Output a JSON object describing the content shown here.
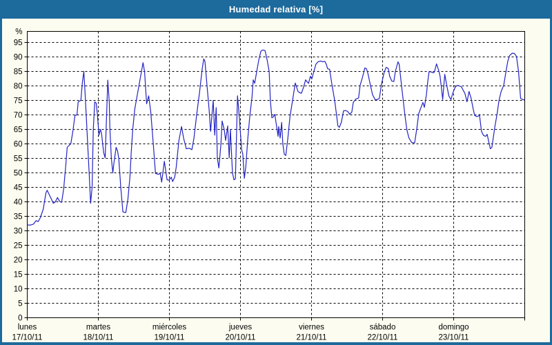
{
  "window": {
    "title": "Humedad relativa [%]"
  },
  "chart_data": {
    "type": "line",
    "title": "Humedad relativa [%]",
    "ylabel": "%",
    "unit_label": "%",
    "ylim": [
      0,
      100
    ],
    "ytick_step": 5,
    "ytick_min": 0,
    "ytick_max": 95,
    "grid": "dashed",
    "legend_position": "none",
    "x_hours_total": 168,
    "x_days": [
      {
        "name": "lunes",
        "date": "17/10/11"
      },
      {
        "name": "martes",
        "date": "18/10/11"
      },
      {
        "name": "miércoles",
        "date": "19/10/11"
      },
      {
        "name": "jueves",
        "date": "20/10/11"
      },
      {
        "name": "viernes",
        "date": "21/10/11"
      },
      {
        "name": "sábado",
        "date": "22/10/11"
      },
      {
        "name": "domingo",
        "date": "23/10/11"
      }
    ],
    "colors": {
      "frame": "#1d6a9c",
      "title_text": "#ffffff",
      "content_bg": "#fcfdf0",
      "plot_bg": "#ffffff",
      "line": "#2222c2",
      "grid": "#000000",
      "axis": "#000000",
      "text": "#000000"
    },
    "series": [
      {
        "name": "Humedad relativa",
        "points": [
          [
            0,
            32
          ],
          [
            1.2,
            32
          ],
          [
            2.1,
            32.3
          ],
          [
            3,
            33.5
          ],
          [
            3.7,
            33.2
          ],
          [
            4.4,
            34.5
          ],
          [
            5.4,
            37.5
          ],
          [
            6.3,
            43
          ],
          [
            6.7,
            44
          ],
          [
            7.4,
            42.5
          ],
          [
            8.1,
            41
          ],
          [
            8.8,
            39.5
          ],
          [
            9.5,
            40
          ],
          [
            10.2,
            41.5
          ],
          [
            10.9,
            40.2
          ],
          [
            11.6,
            39.8
          ],
          [
            12.3,
            44.5
          ],
          [
            13,
            52.5
          ],
          [
            13.5,
            58.8
          ],
          [
            14.7,
            60
          ],
          [
            15.4,
            64.3
          ],
          [
            16.1,
            69.8
          ],
          [
            16.8,
            70
          ],
          [
            17.2,
            74.5
          ],
          [
            18.1,
            75
          ],
          [
            18.6,
            81
          ],
          [
            19.1,
            85
          ],
          [
            19.5,
            78
          ],
          [
            20,
            68.3
          ],
          [
            20.5,
            57.9
          ],
          [
            20.9,
            50
          ],
          [
            21.4,
            39.5
          ],
          [
            21.9,
            45
          ],
          [
            22.3,
            65
          ],
          [
            22.8,
            74.5
          ],
          [
            23.3,
            74
          ],
          [
            23.7,
            70
          ],
          [
            24.2,
            63
          ],
          [
            24.7,
            65
          ],
          [
            25.1,
            63.5
          ],
          [
            25.8,
            57
          ],
          [
            26.3,
            55.2
          ],
          [
            26.8,
            70
          ],
          [
            27.2,
            82
          ],
          [
            27.7,
            74.3
          ],
          [
            27.9,
            65.5
          ],
          [
            28.4,
            55
          ],
          [
            28.9,
            50
          ],
          [
            29.3,
            53.6
          ],
          [
            30,
            58.8
          ],
          [
            30.5,
            57.5
          ],
          [
            30.9,
            55
          ],
          [
            31.6,
            44.8
          ],
          [
            32.3,
            36.5
          ],
          [
            33.3,
            36.3
          ],
          [
            34,
            41
          ],
          [
            34.7,
            48.8
          ],
          [
            35.1,
            56.7
          ],
          [
            35.6,
            64.8
          ],
          [
            36.3,
            72
          ],
          [
            37,
            76
          ],
          [
            37.7,
            80
          ],
          [
            38.4,
            84
          ],
          [
            39.1,
            88
          ],
          [
            39.6,
            85
          ],
          [
            40.3,
            73.8
          ],
          [
            41,
            76.6
          ],
          [
            41.7,
            71
          ],
          [
            42.6,
            59.5
          ],
          [
            43.3,
            49.8
          ],
          [
            44.2,
            49.5
          ],
          [
            44.9,
            49.8
          ],
          [
            45.4,
            46.8
          ],
          [
            46.3,
            54
          ],
          [
            47.2,
            47.6
          ],
          [
            47.9,
            47.5
          ],
          [
            48.6,
            48.5
          ],
          [
            49.1,
            47
          ],
          [
            49.8,
            48.5
          ],
          [
            50.3,
            52
          ],
          [
            51.2,
            61
          ],
          [
            52.1,
            66
          ],
          [
            52.8,
            62
          ],
          [
            53.7,
            58.3
          ],
          [
            54.7,
            58.5
          ],
          [
            55.6,
            58
          ],
          [
            56.3,
            62
          ],
          [
            57.2,
            70
          ],
          [
            58.2,
            78
          ],
          [
            59.1,
            86
          ],
          [
            59.6,
            89.3
          ],
          [
            60,
            88.5
          ],
          [
            60.7,
            80.2
          ],
          [
            61.4,
            72
          ],
          [
            61.9,
            64.3
          ],
          [
            62.8,
            75
          ],
          [
            63.3,
            63
          ],
          [
            63.8,
            72.5
          ],
          [
            64.2,
            55
          ],
          [
            64.7,
            51.7
          ],
          [
            65.4,
            60
          ],
          [
            65.8,
            67.9
          ],
          [
            66.5,
            65
          ],
          [
            67,
            61.2
          ],
          [
            67.7,
            66.2
          ],
          [
            68.2,
            55.2
          ],
          [
            68.6,
            65
          ],
          [
            69.3,
            50
          ],
          [
            69.8,
            47.6
          ],
          [
            70.3,
            48
          ],
          [
            71,
            76.6
          ],
          [
            71.4,
            72
          ],
          [
            71.9,
            65
          ],
          [
            72.4,
            58
          ],
          [
            72.8,
            56.5
          ],
          [
            73.3,
            48.1
          ],
          [
            73.8,
            52
          ],
          [
            74.5,
            62
          ],
          [
            75.2,
            70
          ],
          [
            75.9,
            76
          ],
          [
            76.3,
            82.1
          ],
          [
            76.8,
            80.9
          ],
          [
            77.5,
            85
          ],
          [
            78.2,
            89
          ],
          [
            78.9,
            92
          ],
          [
            79.6,
            92.4
          ],
          [
            80.3,
            92.2
          ],
          [
            81,
            89
          ],
          [
            81.7,
            85
          ],
          [
            82.1,
            75
          ],
          [
            82.6,
            69
          ],
          [
            83.1,
            69.3
          ],
          [
            83.6,
            70.2
          ],
          [
            84.2,
            66
          ],
          [
            84.7,
            62.6
          ],
          [
            84.9,
            66
          ],
          [
            85.4,
            62
          ],
          [
            85.9,
            67.4
          ],
          [
            86.3,
            60
          ],
          [
            86.8,
            56.4
          ],
          [
            87.3,
            56
          ],
          [
            88,
            62
          ],
          [
            88.7,
            69.3
          ],
          [
            89.6,
            75
          ],
          [
            90.5,
            81
          ],
          [
            91,
            79.5
          ],
          [
            91.4,
            78.1
          ],
          [
            92.1,
            77.6
          ],
          [
            92.6,
            77.5
          ],
          [
            93.3,
            79.5
          ],
          [
            94,
            82.1
          ],
          [
            94.5,
            81.4
          ],
          [
            95,
            80.9
          ],
          [
            95.6,
            83.3
          ],
          [
            96.1,
            82.4
          ],
          [
            96.8,
            85
          ],
          [
            97.5,
            87.5
          ],
          [
            98.2,
            88.3
          ],
          [
            99.1,
            88.6
          ],
          [
            99.8,
            88.3
          ],
          [
            100.5,
            88.5
          ],
          [
            101,
            87.4
          ],
          [
            101.4,
            86
          ],
          [
            102.1,
            85.7
          ],
          [
            102.8,
            81
          ],
          [
            103.8,
            75
          ],
          [
            104.5,
            69.5
          ],
          [
            104.9,
            66.2
          ],
          [
            105.4,
            65.7
          ],
          [
            106.1,
            67.5
          ],
          [
            106.8,
            71.4
          ],
          [
            107.5,
            71.5
          ],
          [
            108.2,
            71.2
          ],
          [
            108.9,
            70.2
          ],
          [
            109.6,
            71
          ],
          [
            110.1,
            74.3
          ],
          [
            111,
            75.5
          ],
          [
            111.9,
            75.8
          ],
          [
            112.4,
            80.2
          ],
          [
            113.1,
            82.6
          ],
          [
            114,
            86.2
          ],
          [
            114.5,
            86
          ],
          [
            115,
            84.5
          ],
          [
            115.9,
            80.2
          ],
          [
            116.6,
            77
          ],
          [
            117.5,
            75.2
          ],
          [
            118.2,
            75.3
          ],
          [
            118.9,
            75.7
          ],
          [
            119.6,
            80.5
          ],
          [
            120.5,
            84.5
          ],
          [
            121.2,
            86.4
          ],
          [
            121.9,
            86
          ],
          [
            122.4,
            83.3
          ],
          [
            123.1,
            81.7
          ],
          [
            123.8,
            81.5
          ],
          [
            124.3,
            85
          ],
          [
            125.2,
            88.3
          ],
          [
            125.6,
            87.5
          ],
          [
            126.6,
            78.3
          ],
          [
            127.5,
            70.2
          ],
          [
            128.2,
            64.8
          ],
          [
            128.9,
            62
          ],
          [
            129.8,
            60.5
          ],
          [
            130.8,
            60.3
          ],
          [
            131.5,
            65
          ],
          [
            132.2,
            70.5
          ],
          [
            132.9,
            72.4
          ],
          [
            133.6,
            74.3
          ],
          [
            134.1,
            72.6
          ],
          [
            134.8,
            77
          ],
          [
            135.2,
            81
          ],
          [
            135.7,
            85
          ],
          [
            136.4,
            84.8
          ],
          [
            137.1,
            84.5
          ],
          [
            137.5,
            84.8
          ],
          [
            138.2,
            87.6
          ],
          [
            138.9,
            85.5
          ],
          [
            139.4,
            83.3
          ],
          [
            139.9,
            79
          ],
          [
            140.3,
            75.3
          ],
          [
            141,
            84
          ],
          [
            141.7,
            80
          ],
          [
            142.4,
            76.5
          ],
          [
            143.1,
            75.3
          ],
          [
            143.7,
            77.5
          ],
          [
            144.5,
            79.5
          ],
          [
            145.2,
            80.2
          ],
          [
            145.9,
            80
          ],
          [
            146.6,
            79.7
          ],
          [
            147.3,
            78.3
          ],
          [
            147.8,
            77.4
          ],
          [
            148.5,
            74.5
          ],
          [
            149.2,
            78.1
          ],
          [
            149.9,
            75.7
          ],
          [
            150.6,
            72
          ],
          [
            151.1,
            69.8
          ],
          [
            151.8,
            69.4
          ],
          [
            152.5,
            69.7
          ],
          [
            152.7,
            70.2
          ],
          [
            153.4,
            64.3
          ],
          [
            154.1,
            62.9
          ],
          [
            154.8,
            62.6
          ],
          [
            155.3,
            63.3
          ],
          [
            156,
            60
          ],
          [
            156.4,
            58.3
          ],
          [
            156.9,
            58.8
          ],
          [
            157.9,
            65.9
          ],
          [
            158.6,
            70
          ],
          [
            159.3,
            75
          ],
          [
            160,
            78
          ],
          [
            160.9,
            80.2
          ],
          [
            161.6,
            84.5
          ],
          [
            162.3,
            88.6
          ],
          [
            162.9,
            90.5
          ],
          [
            163.8,
            91.3
          ],
          [
            164.5,
            91.2
          ],
          [
            165.2,
            90.2
          ],
          [
            165.9,
            85
          ],
          [
            166.3,
            79.8
          ],
          [
            166.6,
            75.7
          ],
          [
            167.3,
            75.3
          ],
          [
            168,
            75.2
          ]
        ]
      }
    ]
  }
}
